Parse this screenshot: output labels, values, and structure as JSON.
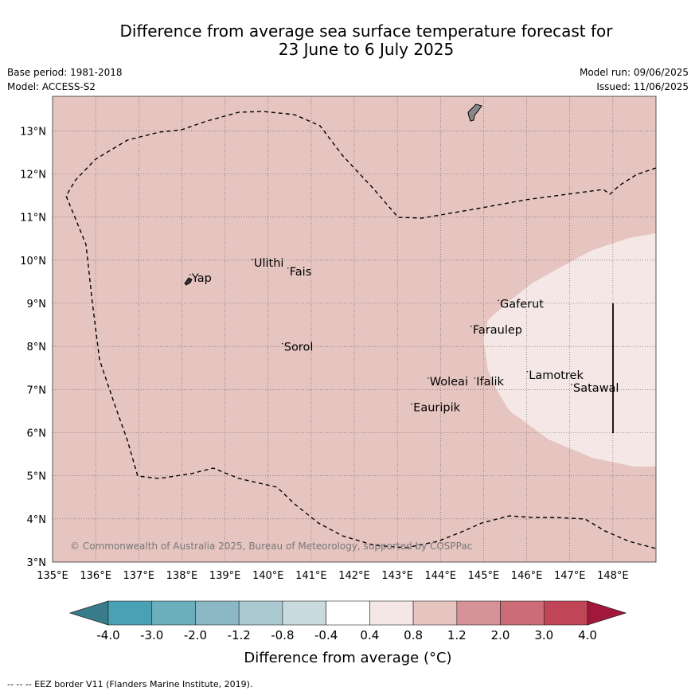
{
  "title": {
    "line1": "Difference from average sea surface temperature forecast for",
    "line2": "23 June to 6 July 2025"
  },
  "meta": {
    "base_period": "Base period: 1981-2018",
    "model": "Model: ACCESS-S2",
    "model_run": "Model run: 09/06/2025",
    "issued": "Issued: 11/06/2025"
  },
  "map": {
    "lon_range": [
      135,
      149
    ],
    "lat_range": [
      3,
      13.8
    ],
    "lon_ticks": [
      "135°E",
      "136°E",
      "137°E",
      "138°E",
      "139°E",
      "140°E",
      "141°E",
      "142°E",
      "143°E",
      "144°E",
      "145°E",
      "146°E",
      "147°E",
      "148°E"
    ],
    "lat_ticks": [
      "3°N",
      "4°N",
      "5°N",
      "6°N",
      "7°N",
      "8°N",
      "9°N",
      "10°N",
      "11°N",
      "12°N",
      "13°N"
    ],
    "background_category": "0.8 to 1.2",
    "anomaly_region_category": "0.4 to 0.8",
    "labels": [
      {
        "name": "Yap",
        "lon": 138.23,
        "lat": 9.5
      },
      {
        "name": "Ulithi",
        "lon": 139.67,
        "lat": 9.85
      },
      {
        "name": "Fais",
        "lon": 140.5,
        "lat": 9.65
      },
      {
        "name": "Sorol",
        "lon": 140.37,
        "lat": 7.9
      },
      {
        "name": "Gaferut",
        "lon": 145.38,
        "lat": 8.9
      },
      {
        "name": "Faraulep",
        "lon": 144.75,
        "lat": 8.3
      },
      {
        "name": "Lamotrek",
        "lon": 146.05,
        "lat": 7.25
      },
      {
        "name": "Satawal",
        "lon": 147.08,
        "lat": 6.95
      },
      {
        "name": "Woleai",
        "lon": 143.75,
        "lat": 7.1
      },
      {
        "name": "Ifalik",
        "lon": 144.83,
        "lat": 7.1
      },
      {
        "name": "Eauripik",
        "lon": 143.37,
        "lat": 6.5
      }
    ],
    "copyright": "© Commonwealth of Australia 2025, Bureau of Meteorology, supported by COSPPac"
  },
  "colorbar": {
    "ticks": [
      "-4.0",
      "-3.0",
      "-2.0",
      "-1.2",
      "-0.8",
      "-0.4",
      "0.4",
      "0.8",
      "1.2",
      "2.0",
      "3.0",
      "4.0"
    ],
    "colors": [
      "#397c8b",
      "#48a2b3",
      "#6bafbd",
      "#8bb8c4",
      "#aac9d0",
      "#c8dadd",
      "#ffffff",
      "#f4e7e6",
      "#e6c5c1",
      "#d79299",
      "#cc6c76",
      "#bf4557",
      "#a2183a"
    ],
    "label": "Difference from average (°C)"
  },
  "footer": "--  --  -- EEZ border V11 (Flanders Marine Institute, 2019)."
}
